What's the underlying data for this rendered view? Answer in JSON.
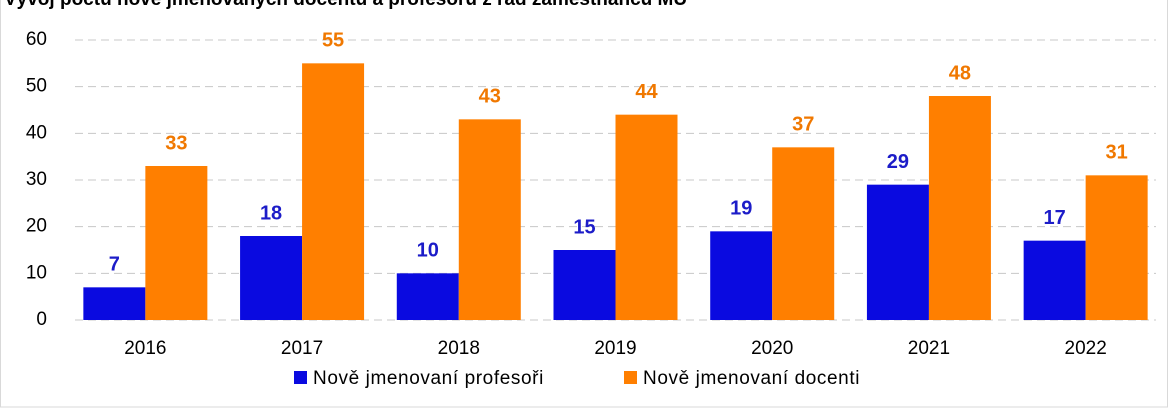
{
  "chart_data": {
    "type": "bar",
    "title": "Vývoj počtu nově jmenovaných docentů a profesorů z řad zaměstnanců MU",
    "categories": [
      "2016",
      "2017",
      "2018",
      "2019",
      "2020",
      "2021",
      "2022"
    ],
    "series": [
      {
        "name": "Nově jmenovaní profesoři",
        "color": "#0a0ae0",
        "label_color": "#1c1cc8",
        "values": [
          7,
          18,
          10,
          15,
          19,
          29,
          17
        ]
      },
      {
        "name": "Nově jmenovaní docenti",
        "color": "#ff7f00",
        "label_color": "#f07800",
        "values": [
          33,
          55,
          43,
          44,
          37,
          48,
          31
        ]
      }
    ],
    "ylim": [
      0,
      60
    ],
    "yticks": [
      0,
      10,
      20,
      30,
      40,
      50,
      60
    ],
    "grid": true,
    "legend": "bottom"
  }
}
